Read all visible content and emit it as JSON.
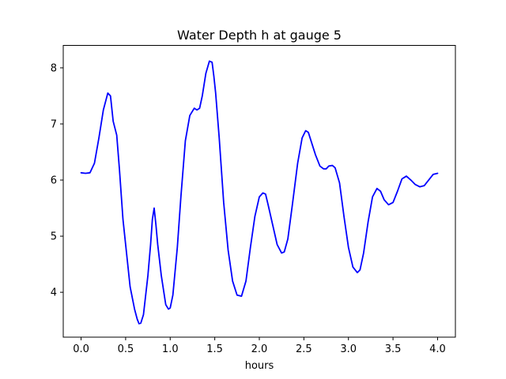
{
  "chart_data": {
    "type": "line",
    "title": "Water Depth h at gauge 5",
    "xlabel": "hours",
    "ylabel": "",
    "xlim": [
      -0.2,
      4.2
    ],
    "ylim": [
      3.2,
      8.4
    ],
    "xticks": [
      "0.0",
      "0.5",
      "1.0",
      "1.5",
      "2.0",
      "2.5",
      "3.0",
      "3.5",
      "4.0"
    ],
    "yticks": [
      "4",
      "5",
      "6",
      "7",
      "8"
    ],
    "grid": false,
    "legend": "none",
    "series": [
      {
        "color": "#0000ff",
        "x": [
          0.0,
          0.05,
          0.1,
          0.15,
          0.2,
          0.25,
          0.3,
          0.33,
          0.36,
          0.4,
          0.43,
          0.47,
          0.5,
          0.55,
          0.6,
          0.63,
          0.65,
          0.67,
          0.7,
          0.75,
          0.78,
          0.8,
          0.82,
          0.84,
          0.86,
          0.9,
          0.95,
          0.98,
          1.0,
          1.03,
          1.08,
          1.12,
          1.17,
          1.22,
          1.27,
          1.3,
          1.33,
          1.36,
          1.4,
          1.44,
          1.47,
          1.49,
          1.51,
          1.55,
          1.6,
          1.65,
          1.7,
          1.75,
          1.8,
          1.85,
          1.9,
          1.95,
          2.0,
          2.04,
          2.07,
          2.1,
          2.15,
          2.2,
          2.25,
          2.28,
          2.32,
          2.37,
          2.43,
          2.48,
          2.52,
          2.55,
          2.58,
          2.63,
          2.68,
          2.72,
          2.75,
          2.78,
          2.82,
          2.85,
          2.9,
          2.95,
          3.0,
          3.05,
          3.1,
          3.13,
          3.17,
          3.22,
          3.27,
          3.32,
          3.36,
          3.4,
          3.45,
          3.5,
          3.55,
          3.6,
          3.65,
          3.7,
          3.75,
          3.8,
          3.85,
          3.9,
          3.95,
          4.0
        ],
        "y": [
          6.13,
          6.12,
          6.13,
          6.3,
          6.75,
          7.25,
          7.55,
          7.5,
          7.05,
          6.8,
          6.2,
          5.3,
          4.85,
          4.1,
          3.7,
          3.52,
          3.44,
          3.45,
          3.6,
          4.3,
          4.85,
          5.3,
          5.5,
          5.2,
          4.85,
          4.3,
          3.78,
          3.7,
          3.72,
          3.95,
          4.8,
          5.7,
          6.7,
          7.15,
          7.28,
          7.25,
          7.28,
          7.5,
          7.9,
          8.12,
          8.1,
          7.85,
          7.55,
          6.75,
          5.6,
          4.75,
          4.2,
          3.95,
          3.93,
          4.2,
          4.8,
          5.35,
          5.7,
          5.77,
          5.75,
          5.55,
          5.2,
          4.85,
          4.7,
          4.72,
          4.95,
          5.55,
          6.3,
          6.75,
          6.88,
          6.85,
          6.7,
          6.45,
          6.25,
          6.2,
          6.2,
          6.25,
          6.26,
          6.22,
          5.95,
          5.35,
          4.8,
          4.45,
          4.35,
          4.4,
          4.7,
          5.25,
          5.7,
          5.85,
          5.8,
          5.65,
          5.56,
          5.6,
          5.8,
          6.02,
          6.07,
          6.0,
          5.92,
          5.88,
          5.9,
          6.0,
          6.1,
          6.12
        ]
      }
    ]
  }
}
